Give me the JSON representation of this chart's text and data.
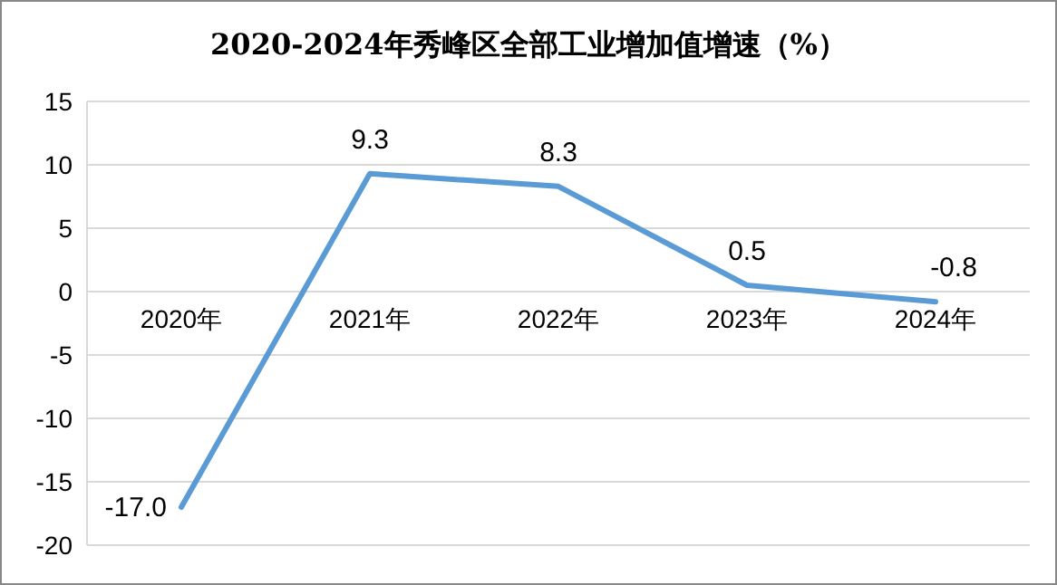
{
  "chart_data": {
    "type": "line",
    "title": "2020-2024年秀峰区全部工业增加值增速（%）",
    "categories": [
      "2020年",
      "2021年",
      "2022年",
      "2023年",
      "2024年"
    ],
    "series": [
      {
        "color": "#5b9bd5",
        "values": [
          -17.0,
          9.3,
          8.3,
          0.5,
          -0.8
        ],
        "value_labels": [
          "-17.0",
          "9.3",
          "8.3",
          "0.5",
          "-0.8"
        ]
      }
    ],
    "ylim": [
      -20,
      15
    ],
    "yticks": [
      -20,
      -15,
      -10,
      -5,
      0,
      5,
      10,
      15
    ],
    "grid": "y",
    "marker": "none",
    "line_style": "solid"
  }
}
